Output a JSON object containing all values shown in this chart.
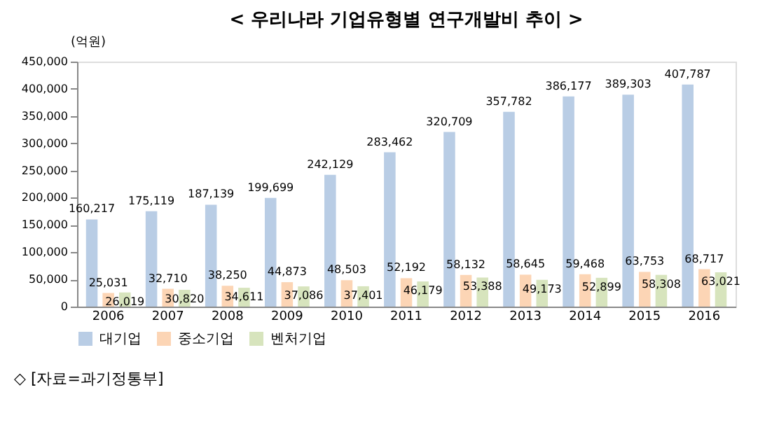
{
  "chart_data": {
    "type": "bar",
    "title": "< 우리나라 기업유형별 연구개발비 추이 >",
    "ylabel": "(억원)",
    "categories": [
      "2006",
      "2007",
      "2008",
      "2009",
      "2010",
      "2011",
      "2012",
      "2013",
      "2014",
      "2015",
      "2016"
    ],
    "series": [
      {
        "name": "대기업",
        "color": "#b9cde5",
        "values": [
          160217,
          175119,
          187139,
          199699,
          242129,
          283462,
          320709,
          357782,
          386177,
          389303,
          407787
        ],
        "value_labels": [
          "160,217",
          "175,119",
          "187,139",
          "199,699",
          "242,129",
          "283,462",
          "320,709",
          "357,782",
          "386,177",
          "389,303",
          "407,787"
        ]
      },
      {
        "name": "중소기업",
        "color": "#fcd5b5",
        "values": [
          25031,
          32710,
          38250,
          44873,
          48503,
          52192,
          58132,
          58645,
          59468,
          63753,
          68717
        ],
        "value_labels": [
          "25,031",
          "32,710",
          "38,250",
          "44,873",
          "48,503",
          "52,192",
          "58,132",
          "58,645",
          "59,468",
          "63,753",
          "68,717"
        ]
      },
      {
        "name": "벤처기업",
        "color": "#d7e4bd",
        "values": [
          26019,
          30820,
          34611,
          37086,
          37401,
          46179,
          53388,
          49173,
          52899,
          58308,
          63021
        ],
        "value_labels": [
          "26,019",
          "30,820",
          "34,611",
          "37,086",
          "37,401",
          "46,179",
          "53,388",
          "49,173",
          "52,899",
          "58,308",
          "63,021"
        ]
      }
    ],
    "ylim": [
      0,
      450000
    ],
    "yticks": [
      0,
      {
        "value": 50000,
        "label": "50,000"
      },
      {
        "value": 100000,
        "label": "100,000"
      },
      {
        "value": 150000,
        "label": "150,000"
      },
      {
        "value": 200000,
        "label": "200,000"
      },
      {
        "value": 250000,
        "label": "250,000"
      },
      {
        "value": 300000,
        "label": "300,000"
      },
      {
        "value": 350000,
        "label": "350,000"
      },
      {
        "value": 400000,
        "label": "400,000"
      },
      {
        "value": 450000,
        "label": "450,000"
      }
    ],
    "grid": false,
    "legend": "bottom",
    "annotations": [
      "◇ [자료=과기정통부]"
    ]
  }
}
